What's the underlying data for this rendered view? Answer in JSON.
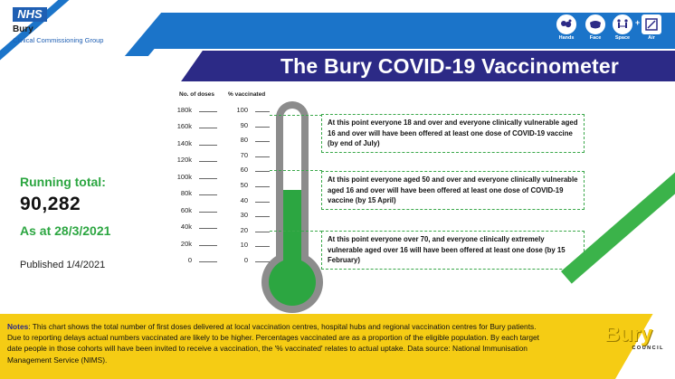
{
  "brand": {
    "nhs_logo": "NHS",
    "org_name": "Bury",
    "org_sub": "Clinical Commissioning Group",
    "council_logo": "Bury",
    "council_sub": "COUNCIL"
  },
  "header": {
    "title": "The Bury COVID-19 Vaccinometer",
    "icons": [
      {
        "name": "hands-icon",
        "label": "Hands"
      },
      {
        "name": "face-icon",
        "label": "Face"
      },
      {
        "name": "space-icon",
        "label": "Space"
      },
      {
        "name": "air-icon",
        "label": "Air"
      }
    ]
  },
  "summary": {
    "running_total_label": "Running total:",
    "running_total_value": "90,282",
    "as_at": "As at 28/3/2021",
    "published": "Published 1/4/2021"
  },
  "scale": {
    "doses_header": "No. of doses",
    "percent_header": "% vaccinated",
    "dose_ticks": [
      "180k",
      "160k",
      "140k",
      "120k",
      "100k",
      "80k",
      "60k",
      "40k",
      "20k",
      "0"
    ],
    "percent_ticks": [
      "100",
      "90",
      "80",
      "70",
      "60",
      "50",
      "40",
      "30",
      "20",
      "10",
      "0"
    ],
    "fill_percent": 47
  },
  "annotations": [
    "At this point everyone 18 and over and everyone clinically vulnerable aged 16 and over will have been offered at least one dose of COVID-19 vaccine (by end of July)",
    "At this point everyone aged 50 and over and everyone clinically vulnerable aged 16 and over will have been offered at least one dose of COVID-19 vaccine (by 15 April)",
    "At this point everyone over 70, and everyone clinically extremely vulnerable aged over 16 will have been offered at least one dose (by 15 February)"
  ],
  "notes": {
    "label": "Notes",
    "text": ": This chart shows the total number of first doses delivered at local vaccination centres, hospital hubs and regional vaccination centres for Bury patients. Due to reporting delays actual numbers vaccinated are likely to be higher.  Percentages vaccinated are as a proportion of the eligible population.  By each target date people in those cohorts will have been invited to receive a vaccination, the '% vaccinated' relates to actual uptake.  Data source: National Immunisation Management Service (NIMS)."
  },
  "colors": {
    "nhs_blue": "#1f5fb3",
    "band_blue": "#1b74c9",
    "title_navy": "#2c2a86",
    "green": "#2ca641",
    "yellow": "#f5cc14",
    "thermo_grey": "#8c8c8c"
  }
}
